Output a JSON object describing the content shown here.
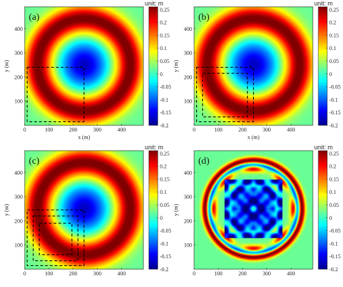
{
  "chart_data": [
    {
      "type": "heatmap",
      "panel_label": "(a)",
      "xlabel": "x (m)",
      "ylabel": "y (m)",
      "xlim": [
        0,
        490
      ],
      "ylim": [
        0,
        490
      ],
      "xticks": [
        0,
        100,
        200,
        300,
        400
      ],
      "yticks": [
        100,
        200,
        300,
        400
      ],
      "colorbar": {
        "unit_label": "unit: m",
        "clim": [
          -0.2,
          0.26
        ],
        "ticks": [
          0.25,
          0.2,
          0.15,
          0.1,
          0.05,
          0,
          -0.05,
          -0.1,
          -0.15,
          -0.2
        ]
      },
      "field": {
        "pattern": "ring",
        "center": [
          245,
          250
        ],
        "ring_radius": 190,
        "ring_amplitude": 0.25,
        "trough_amplitude": -0.19,
        "edge_value": 0.02
      },
      "dashed_boxes": [
        {
          "x": [
            10,
            245
          ],
          "y": [
            15,
            240
          ]
        }
      ]
    },
    {
      "type": "heatmap",
      "panel_label": "(b)",
      "xlabel": "x (m)",
      "ylabel": "y (m)",
      "xlim": [
        0,
        490
      ],
      "ylim": [
        0,
        490
      ],
      "xticks": [
        0,
        100,
        200,
        300,
        400
      ],
      "yticks": [
        100,
        200,
        300,
        400
      ],
      "colorbar": {
        "unit_label": "unit: m",
        "clim": [
          -0.2,
          0.26
        ],
        "ticks": [
          0.25,
          0.2,
          0.15,
          0.1,
          0.05,
          0,
          -0.05,
          -0.1,
          -0.15,
          -0.2
        ]
      },
      "field": {
        "pattern": "ring",
        "center": [
          245,
          250
        ],
        "ring_radius": 190,
        "ring_amplitude": 0.25,
        "trough_amplitude": -0.19,
        "edge_value": 0.02
      },
      "dashed_boxes": [
        {
          "x": [
            10,
            245
          ],
          "y": [
            15,
            240
          ]
        },
        {
          "x": [
            35,
            220
          ],
          "y": [
            35,
            215
          ]
        }
      ]
    },
    {
      "type": "heatmap",
      "panel_label": "(c)",
      "xlabel": "",
      "ylabel": "y (m)",
      "xlim": [
        0,
        490
      ],
      "ylim": [
        0,
        490
      ],
      "xticks": [
        0,
        100,
        200,
        300,
        400
      ],
      "yticks": [
        100,
        200,
        300,
        400
      ],
      "colorbar": {
        "unit_label": "unit: m",
        "clim": [
          -0.2,
          0.26
        ],
        "ticks": [
          0.25,
          0.2,
          0.15,
          0.1,
          0.05,
          0,
          -0.05,
          -0.1,
          -0.15,
          -0.2
        ]
      },
      "field": {
        "pattern": "ring",
        "center": [
          245,
          250
        ],
        "ring_radius": 190,
        "ring_amplitude": 0.25,
        "trough_amplitude": -0.19,
        "edge_value": 0.02
      },
      "dashed_boxes": [
        {
          "x": [
            10,
            245
          ],
          "y": [
            15,
            245
          ]
        },
        {
          "x": [
            35,
            220
          ],
          "y": [
            35,
            220
          ]
        },
        {
          "x": [
            60,
            195
          ],
          "y": [
            60,
            190
          ]
        }
      ]
    },
    {
      "type": "heatmap",
      "panel_label": "(d)",
      "xlabel": "",
      "ylabel": "y (m)",
      "xlim": [
        0,
        490
      ],
      "ylim": [
        0,
        490
      ],
      "xticks": [
        0,
        100,
        200,
        300,
        400
      ],
      "yticks": [
        100,
        200,
        300,
        400
      ],
      "colorbar": {
        "unit_label": "unit: m",
        "clim": [
          -0.2,
          0.26
        ],
        "ticks": [
          0.25,
          0.2,
          0.15,
          0.1,
          0.05,
          0,
          -0.05,
          -0.1,
          -0.15,
          -0.2
        ]
      },
      "field": {
        "pattern": "interference",
        "center": [
          245,
          250
        ],
        "ring_radius": 200,
        "ring_amplitude": 0.25,
        "trough_amplitude": -0.15,
        "edge_value": 0.02
      },
      "dashed_boxes": []
    }
  ]
}
